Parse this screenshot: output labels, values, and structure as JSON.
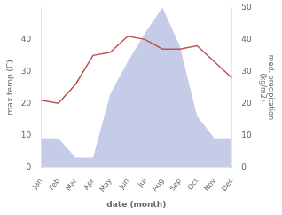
{
  "chart_data": {
    "type": "line",
    "categories": [
      "Jan",
      "Feb",
      "Mar",
      "Apr",
      "May",
      "Jun",
      "Jul",
      "Aug",
      "Sep",
      "Oct",
      "Nov",
      "Dec"
    ],
    "series": [
      {
        "type": "area",
        "color": "#c5cce8",
        "axis": "y2",
        "values": [
          9,
          9,
          3,
          3,
          23,
          33,
          42,
          50,
          38,
          16,
          9,
          9
        ]
      },
      {
        "type": "line",
        "color": "#c0504d",
        "values": [
          21,
          20,
          26,
          35,
          36,
          41,
          40,
          37,
          37,
          38,
          33,
          28
        ]
      }
    ],
    "xlabel": "date (month)",
    "ylabel": "max temp (C)",
    "y2label": "med. precipitation\n(kg/m2)",
    "ylim": [
      0,
      50
    ],
    "yticks": [
      0,
      10,
      20,
      30,
      40
    ],
    "y2lim": [
      0,
      50
    ],
    "y2ticks": [
      0,
      10,
      20,
      30,
      40,
      50
    ],
    "grid": false
  }
}
